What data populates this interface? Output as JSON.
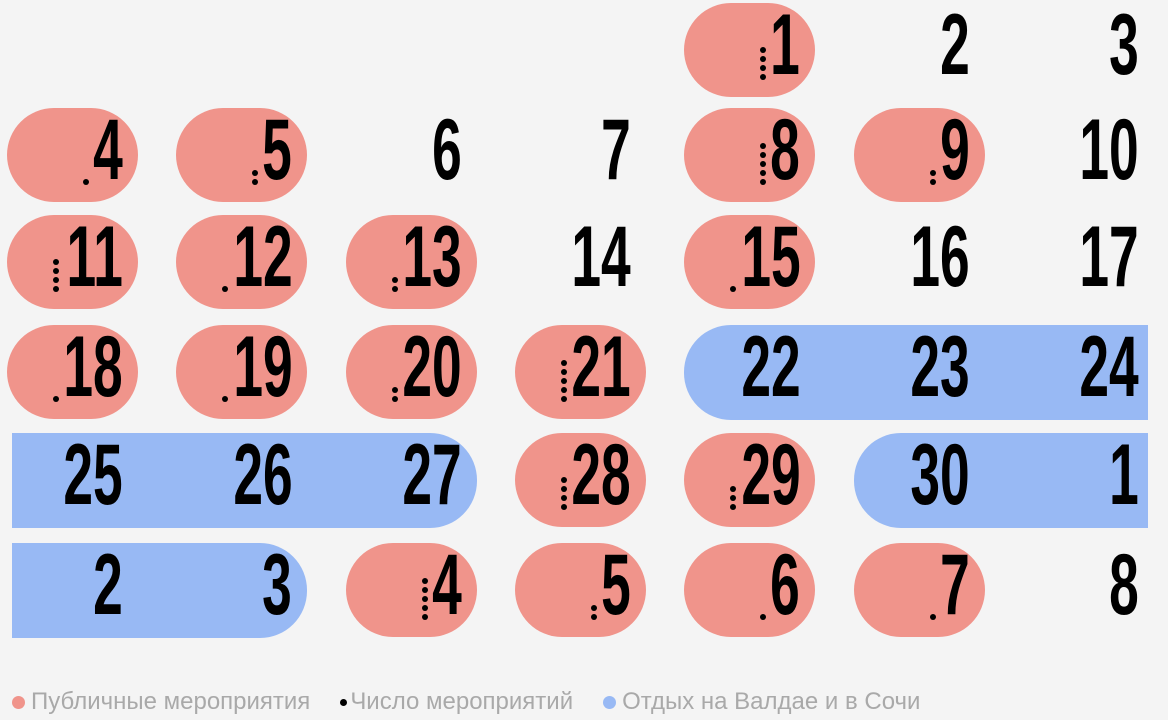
{
  "chart_data": {
    "type": "table",
    "colors": {
      "public": "#f0948b",
      "vacation": "#98b9f4",
      "events": "#000000"
    },
    "weeks": [
      [
        null,
        null,
        null,
        null,
        {
          "day": "1",
          "public": true,
          "events": 4
        },
        {
          "day": "2"
        },
        {
          "day": "3"
        }
      ],
      [
        {
          "day": "4",
          "public": true,
          "events": 1
        },
        {
          "day": "5",
          "public": true,
          "events": 2
        },
        {
          "day": "6"
        },
        {
          "day": "7"
        },
        {
          "day": "8",
          "public": true,
          "events": 5
        },
        {
          "day": "9",
          "public": true,
          "events": 2
        },
        {
          "day": "10"
        }
      ],
      [
        {
          "day": "11",
          "public": true,
          "events": 4
        },
        {
          "day": "12",
          "public": true,
          "events": 1
        },
        {
          "day": "13",
          "public": true,
          "events": 2
        },
        {
          "day": "14"
        },
        {
          "day": "15",
          "public": true,
          "events": 1
        },
        {
          "day": "16"
        },
        {
          "day": "17"
        }
      ],
      [
        {
          "day": "18",
          "public": true,
          "events": 1
        },
        {
          "day": "19",
          "public": true,
          "events": 1
        },
        {
          "day": "20",
          "public": true,
          "events": 2
        },
        {
          "day": "21",
          "public": true,
          "events": 5
        },
        {
          "day": "22",
          "vacation": true
        },
        {
          "day": "23",
          "vacation": true
        },
        {
          "day": "24",
          "vacation": true
        }
      ],
      [
        {
          "day": "25",
          "vacation": true
        },
        {
          "day": "26",
          "vacation": true
        },
        {
          "day": "27",
          "vacation": true
        },
        {
          "day": "28",
          "public": true,
          "events": 4
        },
        {
          "day": "29",
          "public": true,
          "events": 3
        },
        {
          "day": "30",
          "vacation": true
        },
        {
          "day": "1",
          "vacation": true
        }
      ],
      [
        {
          "day": "2",
          "vacation": true
        },
        {
          "day": "3",
          "vacation": true
        },
        {
          "day": "4",
          "public": true,
          "events": 5
        },
        {
          "day": "5",
          "public": true,
          "events": 2
        },
        {
          "day": "6",
          "public": true,
          "events": 1
        },
        {
          "day": "7",
          "public": true,
          "events": 1
        },
        {
          "day": "8"
        }
      ]
    ],
    "legend": [
      {
        "label": "Публичные мероприятия",
        "color": "#f0948b"
      },
      {
        "label": "Число мероприятий",
        "color": "#000000"
      },
      {
        "label": "Отдых на Валдае и в Сочи",
        "color": "#98b9f4"
      }
    ]
  }
}
